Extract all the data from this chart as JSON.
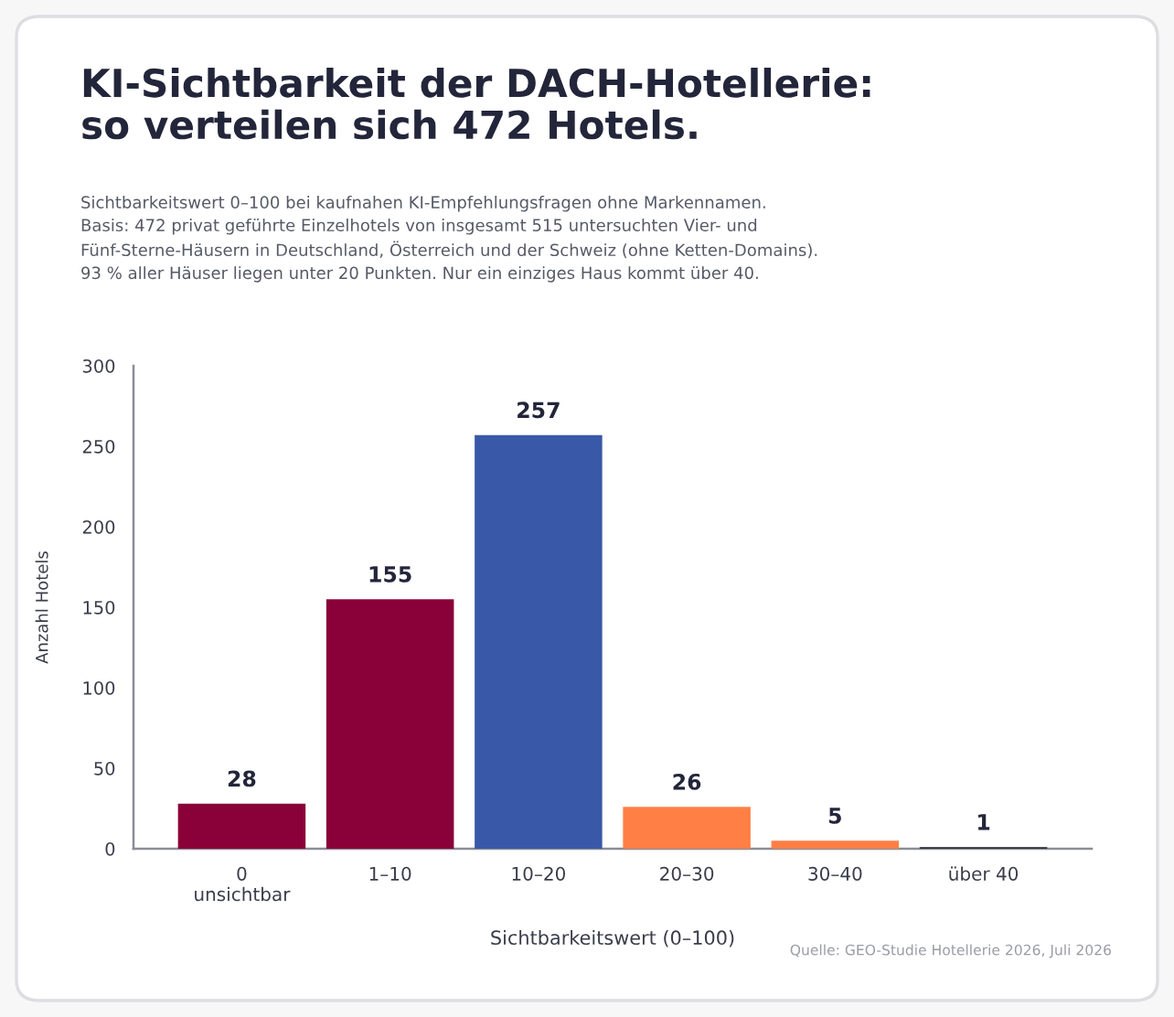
{
  "chart_data": {
    "type": "bar",
    "title": "KI-Sichtbarkeit der DACH-Hotellerie:\nso verteilen sich 472 Hotels.",
    "subtitle": "Sichtbarkeitswert 0–100 bei kaufnahen KI-Empfehlungsfragen ohne Markennamen.\nBasis: 472 privat geführte Einzelhotels von insgesamt 515 untersuchten Vier- und\nFünf-Sterne-Häusern in Deutschland, Österreich und der Schweiz (ohne Ketten-Domains).\n93 % aller Häuser liegen unter 20 Punkten. Nur ein einziges Haus kommt über 40.",
    "categories": [
      "0\nunsichtbar",
      "1–10",
      "10–20",
      "20–30",
      "30–40",
      "über 40"
    ],
    "values": [
      28,
      155,
      257,
      26,
      5,
      1
    ],
    "colors": [
      "#8a0038",
      "#8a0038",
      "#3a58a8",
      "#ff7f45",
      "#ff7f45",
      "#2a2d3a"
    ],
    "xlabel": "Sichtbarkeitswert (0–100)",
    "ylabel": "Anzahl Hotels",
    "ylim": [
      0,
      300
    ],
    "yticks": [
      0,
      50,
      100,
      150,
      200,
      250,
      300
    ],
    "data_labels": true,
    "annotations": [
      "Quelle: GEO-Studie Hotellerie 2026, Juli 2026"
    ]
  }
}
